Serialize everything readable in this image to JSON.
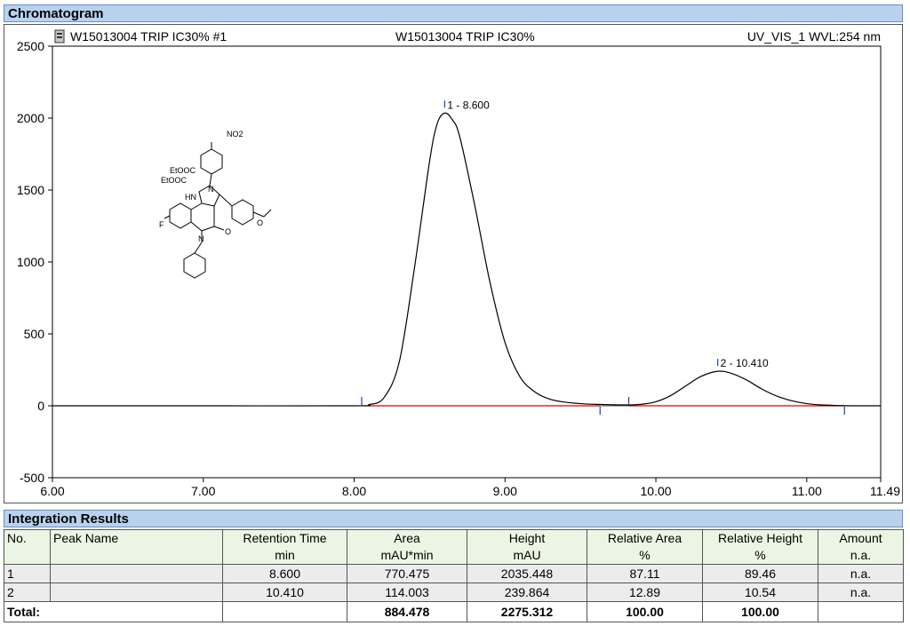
{
  "chromatogram": {
    "header": "Chromatogram",
    "title_left": "W15013004 TRIP IC30% #1",
    "title_center": "W15013004 TRIP IC30%",
    "title_right": "UV_VIS_1 WVL:254 nm"
  },
  "chart_data": {
    "type": "line",
    "xlabel": "",
    "ylabel": "",
    "xlim": [
      6.0,
      11.49
    ],
    "ylim": [
      -500,
      2500
    ],
    "x_ticks": [
      "6.00",
      "7.00",
      "8.00",
      "9.00",
      "10.00",
      "11.00",
      "11.49"
    ],
    "x_tick_values": [
      6.0,
      7.0,
      8.0,
      9.0,
      10.0,
      11.0,
      11.49
    ],
    "y_ticks": [
      "2500",
      "2000",
      "1500",
      "1000",
      "500",
      "0",
      "-500"
    ],
    "y_tick_values": [
      2500,
      2000,
      1500,
      1000,
      500,
      0,
      -500
    ],
    "series": [
      {
        "color": "#000000",
        "x": [
          6.0,
          7.0,
          8.0,
          8.1,
          8.2,
          8.3,
          8.4,
          8.5,
          8.55,
          8.6,
          8.65,
          8.7,
          8.8,
          8.9,
          9.0,
          9.1,
          9.2,
          9.3,
          9.4,
          9.5,
          9.6,
          9.8,
          9.9,
          10.0,
          10.1,
          10.2,
          10.3,
          10.41,
          10.5,
          10.6,
          10.7,
          10.8,
          10.9,
          11.0,
          11.1,
          11.2,
          11.3,
          11.49
        ],
        "y": [
          0,
          0,
          0,
          8,
          60,
          310,
          960,
          1700,
          1960,
          2035,
          1990,
          1870,
          1390,
          860,
          440,
          200,
          95,
          45,
          25,
          15,
          10,
          6,
          10,
          28,
          72,
          140,
          205,
          240,
          226,
          180,
          118,
          68,
          35,
          15,
          6,
          2,
          0,
          0
        ]
      }
    ],
    "peaks": [
      {
        "label": "1 - 8.600",
        "x": 8.6,
        "y": 2035.448
      },
      {
        "label": "2 - 10.410",
        "x": 10.41,
        "y": 239.864
      }
    ],
    "baseline": {
      "color": "#e00000",
      "segments": [
        [
          8.05,
          9.63
        ],
        [
          9.82,
          11.25
        ]
      ]
    },
    "delimiters": [
      {
        "x": 8.05,
        "dir": "up"
      },
      {
        "x": 9.63,
        "dir": "down"
      },
      {
        "x": 9.82,
        "dir": "up"
      },
      {
        "x": 11.25,
        "dir": "down"
      }
    ],
    "marker_color": "#1f3fbf"
  },
  "integration": {
    "header": "Integration Results",
    "columns": [
      {
        "l1": "No.",
        "l2": ""
      },
      {
        "l1": "Peak Name",
        "l2": ""
      },
      {
        "l1": "Retention Time",
        "l2": "min"
      },
      {
        "l1": "Area",
        "l2": "mAU*min"
      },
      {
        "l1": "Height",
        "l2": "mAU"
      },
      {
        "l1": "Relative Area",
        "l2": "%"
      },
      {
        "l1": "Relative Height",
        "l2": "%"
      },
      {
        "l1": "Amount",
        "l2": "n.a."
      }
    ],
    "rows": [
      [
        "1",
        "",
        "8.600",
        "770.475",
        "2035.448",
        "87.11",
        "89.46",
        "n.a."
      ],
      [
        "2",
        "",
        "10.410",
        "114.003",
        "239.864",
        "12.89",
        "10.54",
        "n.a."
      ]
    ],
    "total": [
      "Total:",
      "",
      "",
      "884.478",
      "2275.312",
      "100.00",
      "100.00",
      ""
    ]
  },
  "structure": {
    "labels": [
      "NO2",
      "EtOOC",
      "EtOOC",
      "HN",
      "N",
      "F",
      "O",
      "N",
      "O"
    ]
  }
}
